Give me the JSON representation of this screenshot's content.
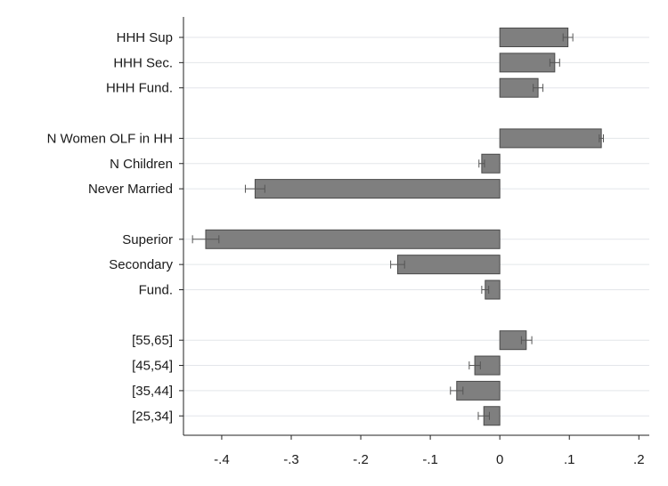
{
  "chart_data": {
    "type": "bar",
    "orientation": "horizontal",
    "title": "",
    "xlabel": "",
    "ylabel": "",
    "xlim": [
      -0.455,
      0.215
    ],
    "xticks": [
      -0.4,
      -0.3,
      -0.2,
      -0.1,
      0,
      0.1,
      0.2
    ],
    "xtick_labels": [
      "-.4",
      "-.3",
      "-.2",
      "-.1",
      "0",
      ".1",
      ".2"
    ],
    "grid": "horizontal",
    "legend": "none",
    "colors": {
      "bar": "#7f7f7f",
      "bar_edge": "#4a4a4a",
      "error_bar": "#555555",
      "grid": "#e3e6ea",
      "axis": "#222222"
    },
    "categories": [
      "HHH Sup",
      "HHH Sec.",
      "HHH Fund.",
      "N Women OLF in HH",
      "N Children",
      "Never Married",
      "Superior",
      "Secondary",
      "Fund.",
      "[55,65]",
      "[45,54]",
      "[35,44]",
      "[25,34]"
    ],
    "groups": [
      [
        "HHH Sup",
        "HHH Sec.",
        "HHH Fund."
      ],
      [
        "N Women OLF in HH",
        "N Children",
        "Never Married"
      ],
      [
        "Superior",
        "Secondary",
        "Fund."
      ],
      [
        "[55,65]",
        "[45,54]",
        "[35,44]",
        "[25,34]"
      ]
    ],
    "values": [
      0.098,
      0.079,
      0.055,
      0.146,
      -0.026,
      -0.352,
      -0.423,
      -0.147,
      -0.021,
      0.038,
      -0.036,
      -0.062,
      -0.023
    ],
    "ci_low": [
      0.091,
      0.072,
      0.048,
      0.143,
      -0.03,
      -0.366,
      -0.442,
      -0.157,
      -0.026,
      0.031,
      -0.044,
      -0.071,
      -0.031
    ],
    "ci_high": [
      0.105,
      0.086,
      0.062,
      0.149,
      -0.022,
      -0.338,
      -0.404,
      -0.137,
      -0.016,
      0.046,
      -0.028,
      -0.053,
      -0.015
    ]
  }
}
